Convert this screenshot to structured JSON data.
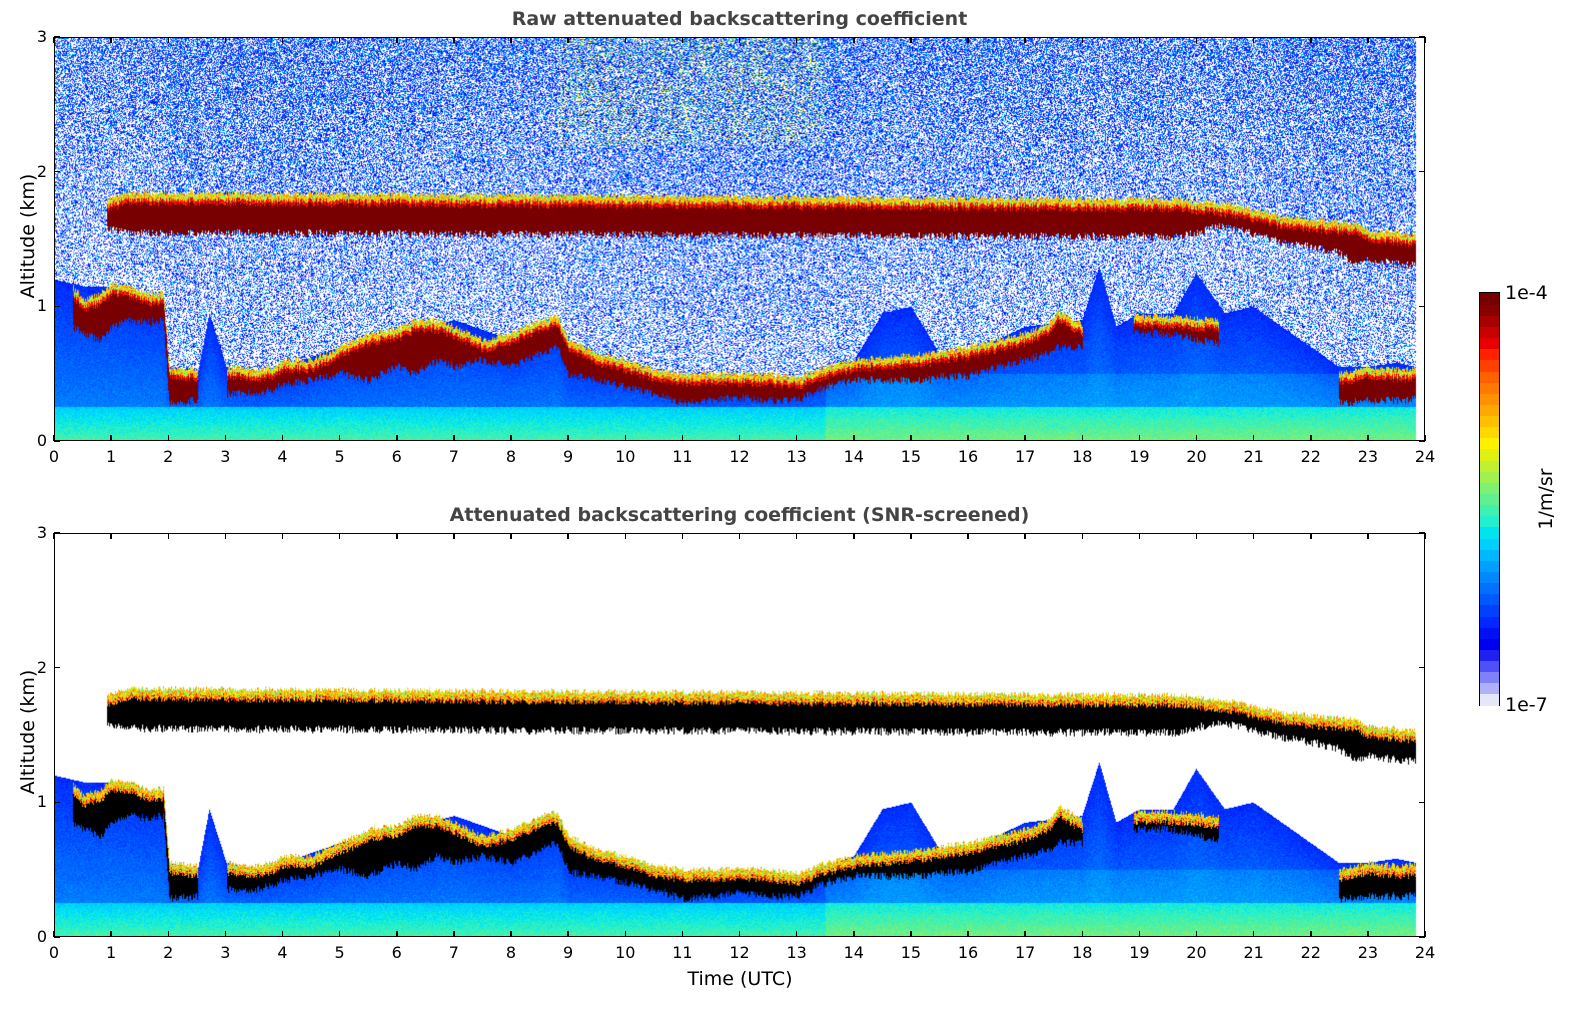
{
  "chart_data": [
    {
      "type": "heatmap",
      "title": "Raw attenuated backscattering coefficient",
      "xlabel": "",
      "ylabel": "Altitude (km)",
      "xlim": [
        0,
        24
      ],
      "ylim": [
        0,
        3
      ],
      "xticks": [
        "0",
        "1",
        "2",
        "3",
        "4",
        "5",
        "6",
        "7",
        "8",
        "9",
        "10",
        "11",
        "12",
        "13",
        "14",
        "15",
        "16",
        "17",
        "18",
        "19",
        "20",
        "21",
        "22",
        "23",
        "24"
      ],
      "yticks": [
        "0",
        "1",
        "2",
        "3"
      ],
      "data_end_hour": 23.85,
      "screening": "raw",
      "cloud_layers": [
        {
          "name": "boundary-layer-cloud",
          "time_h": [
            0.3,
            0.5,
            0.8,
            1.0,
            1.3,
            1.6,
            1.9,
            2.0,
            2.5,
            2.6,
            3.0,
            3.5,
            3.8,
            4.0,
            4.5,
            5.0,
            5.5,
            6.0,
            6.3,
            6.7,
            7.0,
            7.5,
            8.0,
            8.5,
            8.8,
            9.0,
            9.5,
            10.0,
            10.5,
            11.0,
            11.5,
            12.0,
            12.5,
            13.0,
            13.5,
            14.0,
            15.3,
            15.5,
            16.0,
            16.5,
            17.0,
            17.4,
            17.6,
            18.0,
            18.2,
            18.9,
            19.5,
            20.4,
            20.8,
            22.5,
            23.0,
            23.5,
            23.85
          ],
          "base_km": [
            0.85,
            0.8,
            0.75,
            0.85,
            0.9,
            0.88,
            0.9,
            0.28,
            0.3,
            null,
            0.35,
            0.35,
            0.38,
            0.42,
            0.45,
            0.5,
            0.45,
            0.55,
            0.5,
            0.6,
            0.55,
            0.6,
            0.55,
            0.65,
            0.7,
            0.48,
            0.45,
            0.4,
            0.35,
            0.28,
            0.3,
            0.32,
            0.3,
            0.3,
            0.4,
            0.45,
            0.45,
            0.48,
            0.48,
            0.55,
            0.6,
            0.65,
            0.7,
            0.7,
            null,
            0.8,
            0.8,
            0.72,
            null,
            0.28,
            0.3,
            0.3,
            0.3
          ],
          "top_km": [
            1.1,
            1.0,
            1.05,
            1.12,
            1.1,
            1.05,
            1.05,
            0.5,
            0.48,
            null,
            0.5,
            0.48,
            0.5,
            0.55,
            0.55,
            0.65,
            0.75,
            0.78,
            0.85,
            0.85,
            0.8,
            0.7,
            0.75,
            0.85,
            0.88,
            0.7,
            0.6,
            0.55,
            0.48,
            0.45,
            0.45,
            0.45,
            0.45,
            0.42,
            0.5,
            0.55,
            0.6,
            0.62,
            0.65,
            0.7,
            0.75,
            0.82,
            0.92,
            0.82,
            null,
            0.88,
            0.88,
            0.85,
            null,
            0.45,
            0.5,
            0.48,
            0.48
          ]
        },
        {
          "name": "elevated-cloud",
          "time_h": [
            0.9,
            1.3,
            19.7,
            20.4,
            20.9,
            21.5,
            22.0,
            22.5,
            22.8,
            23.0,
            23.5,
            23.85
          ],
          "base_km": [
            1.58,
            1.55,
            1.52,
            1.6,
            1.55,
            1.48,
            1.45,
            1.4,
            1.32,
            1.35,
            1.32,
            1.3
          ],
          "top_km": [
            1.75,
            1.8,
            1.75,
            1.72,
            1.68,
            1.62,
            1.6,
            1.58,
            1.58,
            1.52,
            1.5,
            1.48
          ]
        }
      ]
    },
    {
      "type": "heatmap",
      "title": "Attenuated backscattering coefficient (SNR-screened)",
      "xlabel": "Time (UTC)",
      "ylabel": "Altitude (km)",
      "xlim": [
        0,
        24
      ],
      "ylim": [
        0,
        3
      ],
      "xticks": [
        "0",
        "1",
        "2",
        "3",
        "4",
        "5",
        "6",
        "7",
        "8",
        "9",
        "10",
        "11",
        "12",
        "13",
        "14",
        "15",
        "16",
        "17",
        "18",
        "19",
        "20",
        "21",
        "22",
        "23",
        "24"
      ],
      "yticks": [
        "0",
        "1",
        "2",
        "3"
      ],
      "data_end_hour": 23.85,
      "screening": "SNR-screened",
      "aerosol_top_km": {
        "time_h": [
          0,
          0.5,
          1.0,
          1.5,
          1.9,
          2.0,
          2.5,
          2.7,
          3.0,
          3.5,
          4.0,
          5.0,
          6.0,
          7.0,
          8.0,
          8.8,
          9.0,
          10.0,
          11.0,
          12.0,
          13.0,
          14.0,
          14.5,
          15.0,
          15.5,
          16.0,
          17.0,
          18.0,
          18.3,
          18.6,
          19.0,
          19.6,
          20.0,
          20.5,
          21.0,
          21.5,
          22.0,
          22.5,
          23.0,
          23.5,
          23.85
        ],
        "values": [
          1.2,
          1.15,
          1.15,
          1.08,
          1.05,
          0.55,
          0.5,
          0.95,
          0.55,
          0.5,
          0.55,
          0.7,
          0.8,
          0.9,
          0.75,
          0.9,
          0.6,
          0.55,
          0.45,
          0.45,
          0.45,
          0.6,
          0.95,
          1.0,
          0.65,
          0.65,
          0.85,
          0.9,
          1.3,
          0.85,
          0.95,
          0.95,
          1.25,
          0.95,
          1.0,
          0.85,
          0.7,
          0.55,
          0.55,
          0.58,
          0.55
        ]
      }
    }
  ],
  "colorbar": {
    "label": "1/m/sr",
    "max_label": "1e-4",
    "min_label": "1e-7",
    "colors": [
      "#e6e6fa",
      "#b0b0f8",
      "#8080f8",
      "#5050f8",
      "#2020f0",
      "#0000f0",
      "#0010f5",
      "#0028ff",
      "#0040ff",
      "#0058ff",
      "#0070ff",
      "#0088ff",
      "#00a0ff",
      "#00b8ff",
      "#00d0ff",
      "#00e4f0",
      "#20f0d0",
      "#40f0b0",
      "#60f090",
      "#80f070",
      "#a0f050",
      "#c0f030",
      "#e0f010",
      "#fff000",
      "#ffd800",
      "#ffc000",
      "#ffa800",
      "#ff9000",
      "#ff7800",
      "#ff6000",
      "#ff4000",
      "#ff2000",
      "#e80000",
      "#c80000",
      "#a80000",
      "#880000",
      "#780000"
    ]
  }
}
